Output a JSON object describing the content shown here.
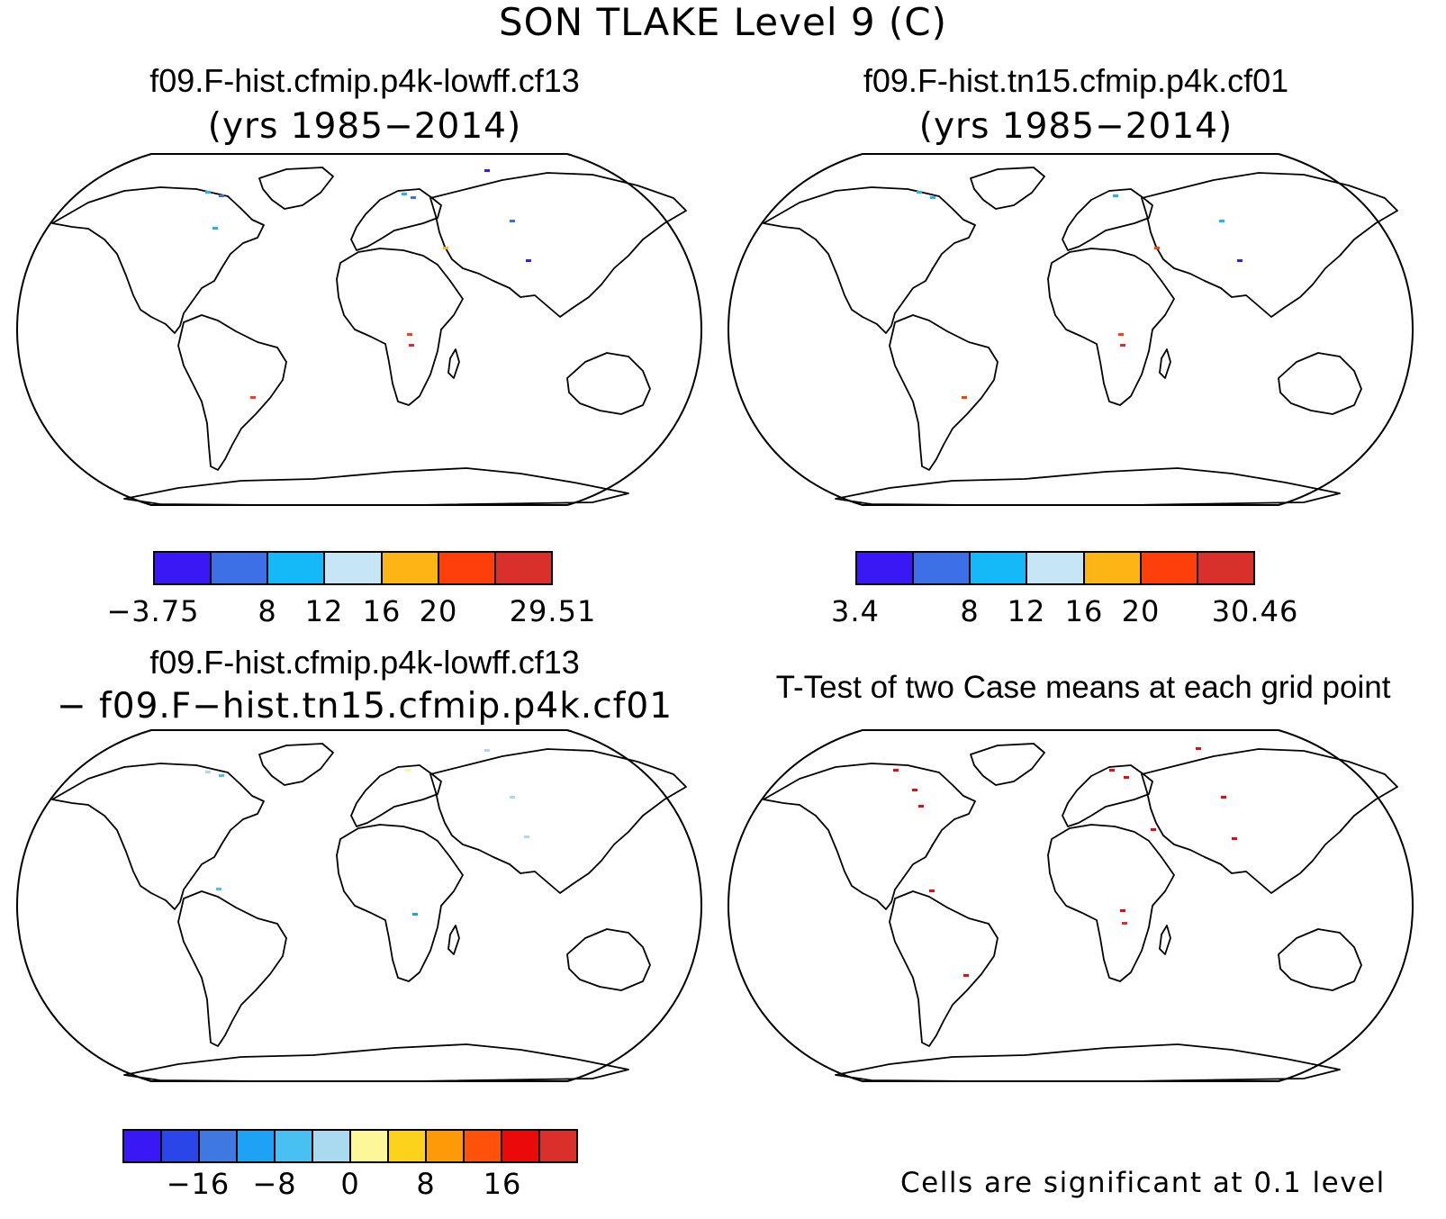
{
  "title": "SON TLAKE Level 9 (C)",
  "panels": {
    "top_left": {
      "title": "f09.F-hist.cfmip.p4k-lowff.cf13",
      "subtitle": "(yrs 1985−2014)",
      "colorbar": {
        "colors": [
          "#3a17f5",
          "#3d6fe6",
          "#15b9f7",
          "#c6e6f6",
          "#fcb514",
          "#fe3f0a",
          "#d9302c"
        ],
        "labels": [
          "−3.75",
          "8",
          "12",
          "16",
          "20",
          "29.51"
        ]
      }
    },
    "top_right": {
      "title": "f09.F-hist.tn15.cfmip.p4k.cf01",
      "subtitle": "(yrs 1985−2014)",
      "colorbar": {
        "colors": [
          "#3a17f5",
          "#3d6fe6",
          "#15b9f7",
          "#c6e6f6",
          "#fcb514",
          "#fe3f0a",
          "#d9302c"
        ],
        "labels": [
          "3.4",
          "8",
          "12",
          "16",
          "20",
          "30.46"
        ]
      }
    },
    "bottom_left": {
      "title": "f09.F-hist.cfmip.p4k-lowff.cf13",
      "subtitle": "− f09.F−hist.tn15.cfmip.p4k.cf01",
      "colorbar": {
        "colors": [
          "#3a17f5",
          "#2a45e8",
          "#3f78e0",
          "#1da2f5",
          "#48c0f2",
          "#a9daf0",
          "#fdf79a",
          "#fcd21c",
          "#fe9a08",
          "#fe520a",
          "#ea0a0a",
          "#d9302c"
        ],
        "labels": [
          "−16",
          "−8",
          "0",
          "8",
          "16"
        ]
      }
    },
    "bottom_right": {
      "title": "T-Test of two Case means at each grid point",
      "note": "Cells are significant at 0.1 level"
    }
  }
}
